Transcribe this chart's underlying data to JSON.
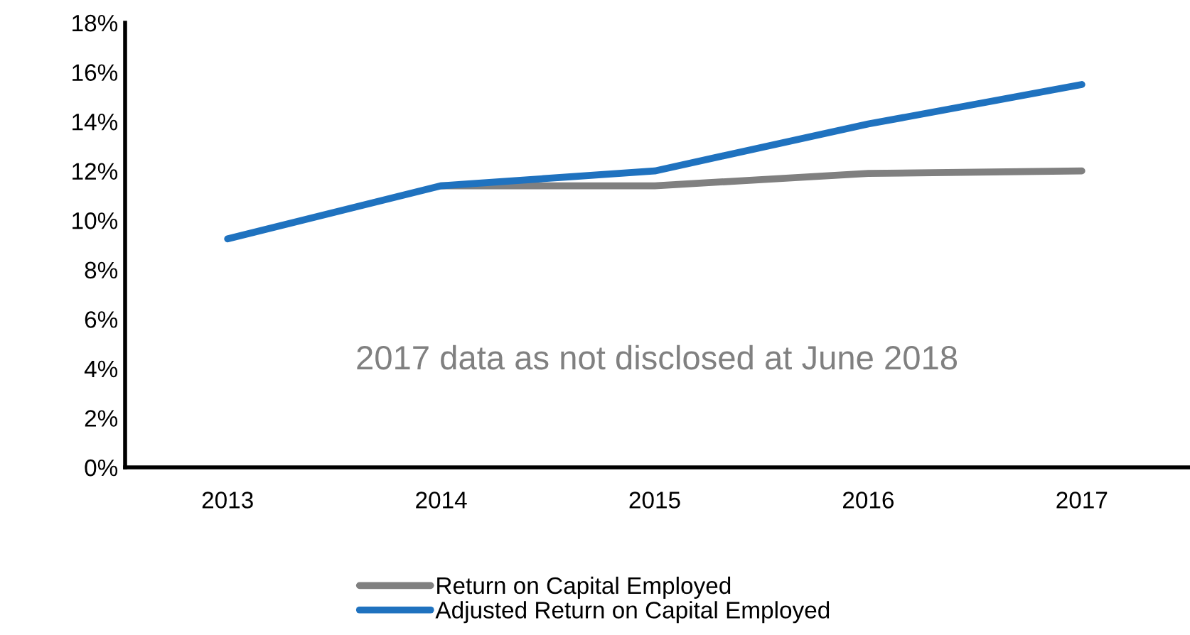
{
  "chart_data": {
    "type": "line",
    "categories": [
      "2013",
      "2014",
      "2015",
      "2016",
      "2017"
    ],
    "series": [
      {
        "name": "Return on Capital Employed",
        "color": "#808080",
        "values": [
          null,
          11.4,
          11.4,
          11.9,
          12.0
        ]
      },
      {
        "name": "Adjusted Return on Capital Employed",
        "color": "#1f72bf",
        "values": [
          9.25,
          11.4,
          12.0,
          13.9,
          15.5
        ]
      }
    ],
    "ylim": [
      0,
      18
    ],
    "yticks": [
      {
        "value": 0,
        "label": "0%"
      },
      {
        "value": 2,
        "label": "2%"
      },
      {
        "value": 4,
        "label": "4%"
      },
      {
        "value": 6,
        "label": "6%"
      },
      {
        "value": 8,
        "label": "8%"
      },
      {
        "value": 10,
        "label": "10%"
      },
      {
        "value": 12,
        "label": "12%"
      },
      {
        "value": 14,
        "label": "14%"
      },
      {
        "value": 16,
        "label": "16%"
      },
      {
        "value": 18,
        "label": "18%"
      }
    ],
    "annotations": [
      "2017 data as not disclosed at June 2018"
    ],
    "grid": false,
    "legend": "bottom",
    "marker": "none",
    "line_style": "solid"
  }
}
